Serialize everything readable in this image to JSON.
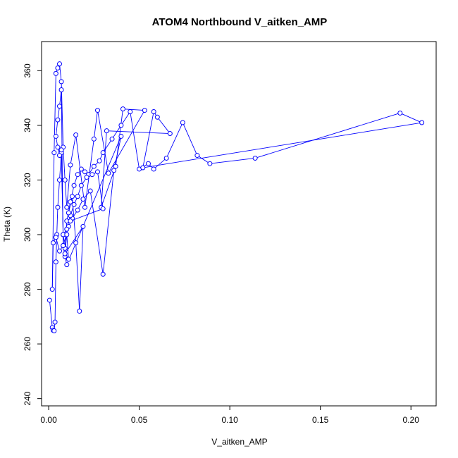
{
  "chart_data": {
    "type": "line",
    "title": "ATOM4 Northbound V_aitken_AMP",
    "xlabel": "V_aitken_AMP",
    "ylabel": "Theta (K)",
    "xlim": [
      0.0,
      0.21
    ],
    "ylim": [
      240,
      368
    ],
    "xticks": [
      0.0,
      0.05,
      0.1,
      0.15,
      0.2
    ],
    "xtick_labels": [
      "0.00",
      "0.05",
      "0.10",
      "0.15",
      "0.20"
    ],
    "yticks": [
      240,
      260,
      280,
      300,
      320,
      340,
      360
    ],
    "ytick_labels": [
      "240",
      "260",
      "280",
      "300",
      "320",
      "340",
      "360"
    ],
    "series_color": "#0000ff",
    "markers": "open-circle",
    "grid": false,
    "legend": "none",
    "series": [
      {
        "x": [
          0.0005,
          0.002,
          0.0025,
          0.003,
          0.0035,
          0.004,
          0.0045,
          0.005,
          0.006,
          0.007,
          0.008,
          0.009,
          0.01,
          0.012,
          0.014,
          0.016,
          0.018,
          0.02,
          0.022,
          0.025,
          0.028,
          0.03,
          0.035,
          0.04,
          0.045,
          0.05,
          0.055,
          0.058,
          0.065,
          0.074,
          0.082,
          0.089,
          0.114,
          0.194,
          0.206,
          0.052,
          0.058,
          0.06,
          0.067,
          0.032,
          0.029,
          0.037,
          0.041,
          0.053,
          0.033,
          0.027,
          0.025,
          0.02,
          0.015,
          0.012,
          0.01,
          0.009,
          0.008,
          0.007,
          0.006,
          0.005,
          0.004,
          0.003,
          0.002,
          0.0025,
          0.004,
          0.006,
          0.008,
          0.011,
          0.013,
          0.016,
          0.019,
          0.023,
          0.03,
          0.036,
          0.04,
          0.01,
          0.009,
          0.008,
          0.007,
          0.006,
          0.005,
          0.004,
          0.005,
          0.006,
          0.007,
          0.008,
          0.01,
          0.012,
          0.014,
          0.016,
          0.018,
          0.021,
          0.024,
          0.027,
          0.03,
          0.012,
          0.011,
          0.013,
          0.015,
          0.017,
          0.019,
          0.009,
          0.01,
          0.011
        ],
        "y": [
          276,
          266,
          265,
          264.8,
          268,
          290,
          300,
          310,
          320,
          330,
          300,
          295,
          305,
          312,
          318,
          322,
          324,
          323,
          322,
          325,
          327,
          330,
          335,
          340,
          345,
          324,
          326,
          324,
          328,
          341,
          329,
          326,
          328,
          344.5,
          341,
          324.5,
          345,
          343,
          337,
          338,
          310,
          325,
          346,
          345.5,
          322.5,
          345.5,
          335,
          310,
          336.5,
          325.5,
          310,
          320,
          332,
          356,
          362.5,
          361,
          359,
          330,
          280,
          297,
          299,
          294,
          296,
          303,
          306,
          309,
          313,
          316,
          285.5,
          323.5,
          336,
          289,
          292,
          296,
          353,
          347,
          342,
          336,
          332,
          329,
          331,
          300,
          302,
          307,
          311,
          314,
          318,
          321,
          322,
          323,
          309.5,
          305,
          308,
          314,
          297,
          272,
          303,
          293,
          300,
          291
        ]
      }
    ]
  }
}
